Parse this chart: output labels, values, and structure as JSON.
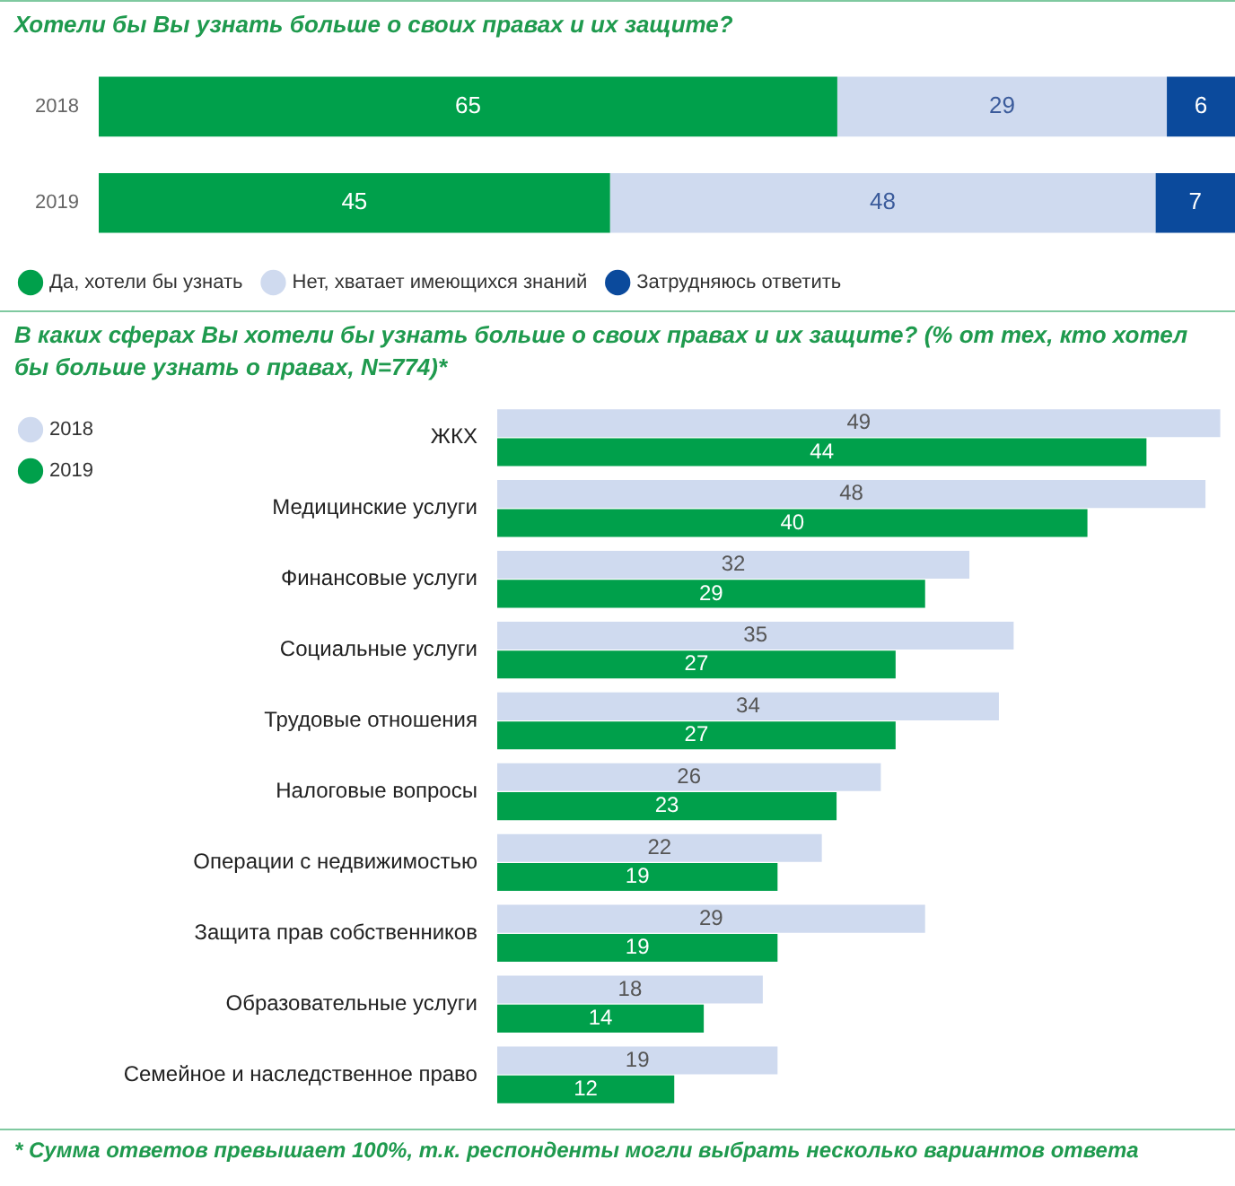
{
  "chart_data": [
    {
      "type": "bar",
      "orientation": "horizontal",
      "stacked": true,
      "title": "Хотели бы Вы узнать больше о своих правах и их защите?",
      "categories": [
        "2018",
        "2019"
      ],
      "series": [
        {
          "name": "Да, хотели бы узнать",
          "color": "#00a04b",
          "values": [
            65,
            45
          ]
        },
        {
          "name": "Нет, хватает имеющихся знаний",
          "color": "#cfdaef",
          "values": [
            29,
            48
          ]
        },
        {
          "name": "Затрудняюсь ответить",
          "color": "#0b4a9c",
          "values": [
            6,
            7
          ]
        }
      ],
      "xlim": [
        0,
        100
      ],
      "tick_labels": "y",
      "legend": "bottom left",
      "data_labels": true
    },
    {
      "type": "bar",
      "orientation": "horizontal",
      "title": "В каких сферах Вы хотели бы узнать больше о своих правах и их защите? (% от тех, кто хотел бы больше узнать о правах, N=774)*",
      "categories": [
        "ЖКХ",
        "Медицинские услуги",
        "Финансовые услуги",
        "Социальные услуги",
        "Трудовые отношения",
        "Налоговые вопросы",
        "Операции с недвижимостью",
        "Защита прав собственников",
        "Образовательные услуги",
        "Семейное и наследственное право"
      ],
      "series": [
        {
          "name": "2018",
          "color": "#cfdaef",
          "values": [
            49,
            48,
            32,
            35,
            34,
            26,
            22,
            29,
            18,
            19
          ]
        },
        {
          "name": "2019",
          "color": "#00a04b",
          "values": [
            44,
            40,
            29,
            27,
            27,
            23,
            19,
            19,
            14,
            12
          ]
        }
      ],
      "xlim": [
        0,
        50
      ],
      "tick_labels": "y",
      "legend": "top left",
      "data_labels": true,
      "annotations": [
        "* Сумма ответов превышает 100%, т.к. респонденты могли выбрать несколько вариантов ответа"
      ]
    }
  ]
}
